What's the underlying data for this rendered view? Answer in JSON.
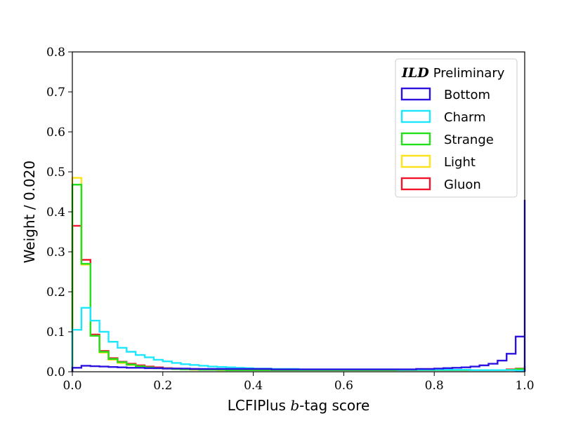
{
  "chart_data": {
    "type": "histogram",
    "xlabel_main": "LCFIPlus ",
    "xlabel_italic": "b",
    "xlabel_tail": "-tag score",
    "ylabel": "Weight / 0.020",
    "xlim": [
      0.0,
      1.0
    ],
    "ylim": [
      0.0,
      0.8
    ],
    "xticks": [
      0.0,
      0.2,
      0.4,
      0.6,
      0.8,
      1.0
    ],
    "xtick_labels": [
      "0.0",
      "0.2",
      "0.4",
      "0.6",
      "0.8",
      "1.0"
    ],
    "yticks": [
      0.0,
      0.1,
      0.2,
      0.3,
      0.4,
      0.5,
      0.6,
      0.7,
      0.8
    ],
    "ytick_labels": [
      "0.0",
      "0.1",
      "0.2",
      "0.3",
      "0.4",
      "0.5",
      "0.6",
      "0.7",
      "0.8"
    ],
    "bin_width": 0.02,
    "legend": {
      "title_logo": "ILD",
      "title_text": "Preliminary",
      "placement": "top-right"
    },
    "series": [
      {
        "name": "Bottom",
        "color": "#2b12e0",
        "values": [
          0.01,
          0.015,
          0.014,
          0.013,
          0.012,
          0.011,
          0.01,
          0.01,
          0.009,
          0.009,
          0.008,
          0.008,
          0.008,
          0.007,
          0.007,
          0.007,
          0.007,
          0.007,
          0.007,
          0.007,
          0.007,
          0.007,
          0.006,
          0.006,
          0.006,
          0.006,
          0.006,
          0.006,
          0.006,
          0.006,
          0.006,
          0.006,
          0.006,
          0.006,
          0.006,
          0.006,
          0.006,
          0.006,
          0.007,
          0.007,
          0.008,
          0.009,
          0.01,
          0.011,
          0.013,
          0.016,
          0.02,
          0.028,
          0.045,
          0.088,
          0.43
        ]
      },
      {
        "name": "Charm",
        "color": "#1de6ff",
        "values": [
          0.105,
          0.16,
          0.128,
          0.1,
          0.075,
          0.06,
          0.05,
          0.042,
          0.036,
          0.03,
          0.026,
          0.022,
          0.019,
          0.017,
          0.015,
          0.013,
          0.012,
          0.011,
          0.01,
          0.009,
          0.008,
          0.008,
          0.007,
          0.007,
          0.007,
          0.006,
          0.006,
          0.006,
          0.006,
          0.006,
          0.006,
          0.006,
          0.006,
          0.006,
          0.006,
          0.006,
          0.005,
          0.005,
          0.005,
          0.005,
          0.005,
          0.005,
          0.005,
          0.005,
          0.004,
          0.004,
          0.004,
          0.004,
          0.004,
          0.003,
          0.003
        ]
      },
      {
        "name": "Strange",
        "color": "#22e01c",
        "values": [
          0.468,
          0.27,
          0.09,
          0.05,
          0.032,
          0.024,
          0.018,
          0.014,
          0.011,
          0.009,
          0.008,
          0.007,
          0.006,
          0.006,
          0.005,
          0.005,
          0.005,
          0.004,
          0.004,
          0.004,
          0.004,
          0.004,
          0.004,
          0.004,
          0.004,
          0.004,
          0.004,
          0.004,
          0.004,
          0.004,
          0.004,
          0.004,
          0.004,
          0.004,
          0.004,
          0.004,
          0.004,
          0.004,
          0.004,
          0.004,
          0.004,
          0.004,
          0.004,
          0.004,
          0.004,
          0.004,
          0.004,
          0.004,
          0.005,
          0.007,
          0.012
        ]
      },
      {
        "name": "Light",
        "color": "#ffe21a",
        "values": [
          0.485,
          0.268,
          0.09,
          0.048,
          0.03,
          0.022,
          0.017,
          0.013,
          0.01,
          0.009,
          0.008,
          0.007,
          0.006,
          0.005,
          0.005,
          0.005,
          0.004,
          0.004,
          0.004,
          0.004,
          0.004,
          0.004,
          0.004,
          0.004,
          0.004,
          0.004,
          0.004,
          0.004,
          0.004,
          0.004,
          0.004,
          0.004,
          0.004,
          0.004,
          0.004,
          0.004,
          0.004,
          0.004,
          0.004,
          0.004,
          0.004,
          0.004,
          0.004,
          0.004,
          0.004,
          0.004,
          0.004,
          0.004,
          0.004,
          0.006,
          0.01
        ]
      },
      {
        "name": "Gluon",
        "color": "#f0142d",
        "values": [
          0.365,
          0.28,
          0.093,
          0.052,
          0.034,
          0.025,
          0.02,
          0.016,
          0.013,
          0.011,
          0.009,
          0.008,
          0.007,
          0.007,
          0.006,
          0.006,
          0.005,
          0.005,
          0.005,
          0.005,
          0.004,
          0.004,
          0.004,
          0.004,
          0.004,
          0.004,
          0.004,
          0.004,
          0.004,
          0.004,
          0.004,
          0.004,
          0.004,
          0.004,
          0.004,
          0.004,
          0.004,
          0.004,
          0.004,
          0.004,
          0.004,
          0.004,
          0.004,
          0.004,
          0.004,
          0.004,
          0.004,
          0.004,
          0.006,
          0.008,
          0.014
        ]
      }
    ]
  }
}
